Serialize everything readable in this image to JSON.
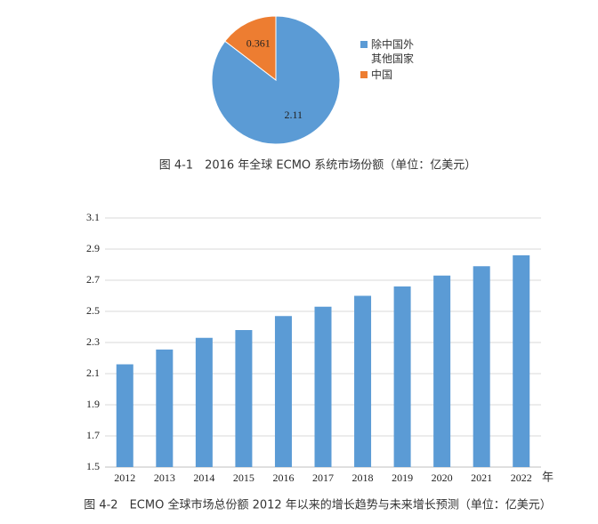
{
  "chart_data": [
    {
      "type": "pie",
      "caption": "图 4-1　2016 年全球 ECMO 系统市场份额（单位：亿美元）",
      "categories": [
        "除中国外其他国家",
        "中国"
      ],
      "values": [
        2.11,
        0.361
      ],
      "colors": [
        "#5b9bd5",
        "#ed7d31"
      ]
    },
    {
      "type": "bar",
      "caption": "图 4-2　ECMO 全球市场总份额 2012 年以来的增长趋势与未来增长预测（单位：亿美元）",
      "categories": [
        "2012",
        "2013",
        "2014",
        "2015",
        "2016",
        "2017",
        "2018",
        "2019",
        "2020",
        "2021",
        "2022"
      ],
      "values": [
        2.16,
        2.255,
        2.33,
        2.38,
        2.47,
        2.53,
        2.6,
        2.66,
        2.73,
        2.79,
        2.86
      ],
      "color": "#5b9bd5",
      "x_label": "年",
      "ylim": [
        1.5,
        3.1
      ],
      "yticks": [
        1.5,
        1.7,
        1.9,
        2.1,
        2.3,
        2.5,
        2.7,
        2.9,
        3.1
      ],
      "grid": true
    }
  ]
}
